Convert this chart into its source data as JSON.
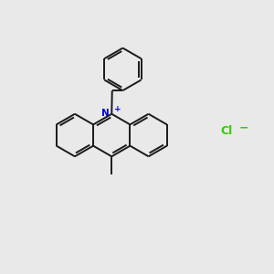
{
  "background_color": "#e9e9e9",
  "line_color": "#1a1a1a",
  "N_color": "#0000dd",
  "Cl_color": "#33cc00",
  "line_width": 1.4,
  "dpi": 100,
  "figsize": [
    3.0,
    3.0
  ]
}
